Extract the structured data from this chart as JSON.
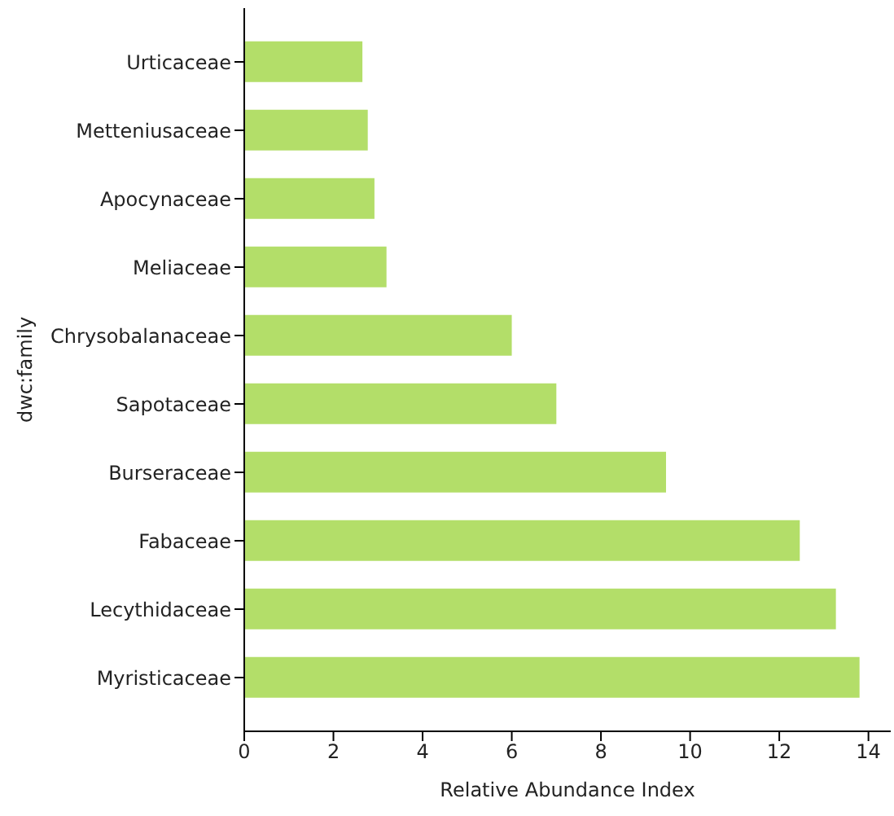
{
  "chart_data": {
    "type": "bar",
    "orientation": "horizontal",
    "xlabel": "Relative Abundance Index",
    "ylabel": "dwc:family",
    "categories": [
      "Urticaceae",
      "Metteniusaceae",
      "Apocynaceae",
      "Meliaceae",
      "Chrysobalanaceae",
      "Sapotaceae",
      "Burseraceae",
      "Fabaceae",
      "Lecythidaceae",
      "Myristicaceae"
    ],
    "values": [
      2.65,
      2.77,
      2.92,
      3.19,
      6.0,
      7.0,
      9.46,
      12.46,
      13.27,
      13.8
    ],
    "color": "#b3de69",
    "xlim": [
      0,
      14.5
    ],
    "xticks": [
      0,
      2,
      4,
      6,
      8,
      10,
      12,
      14
    ],
    "grid": false,
    "legend": false
  }
}
